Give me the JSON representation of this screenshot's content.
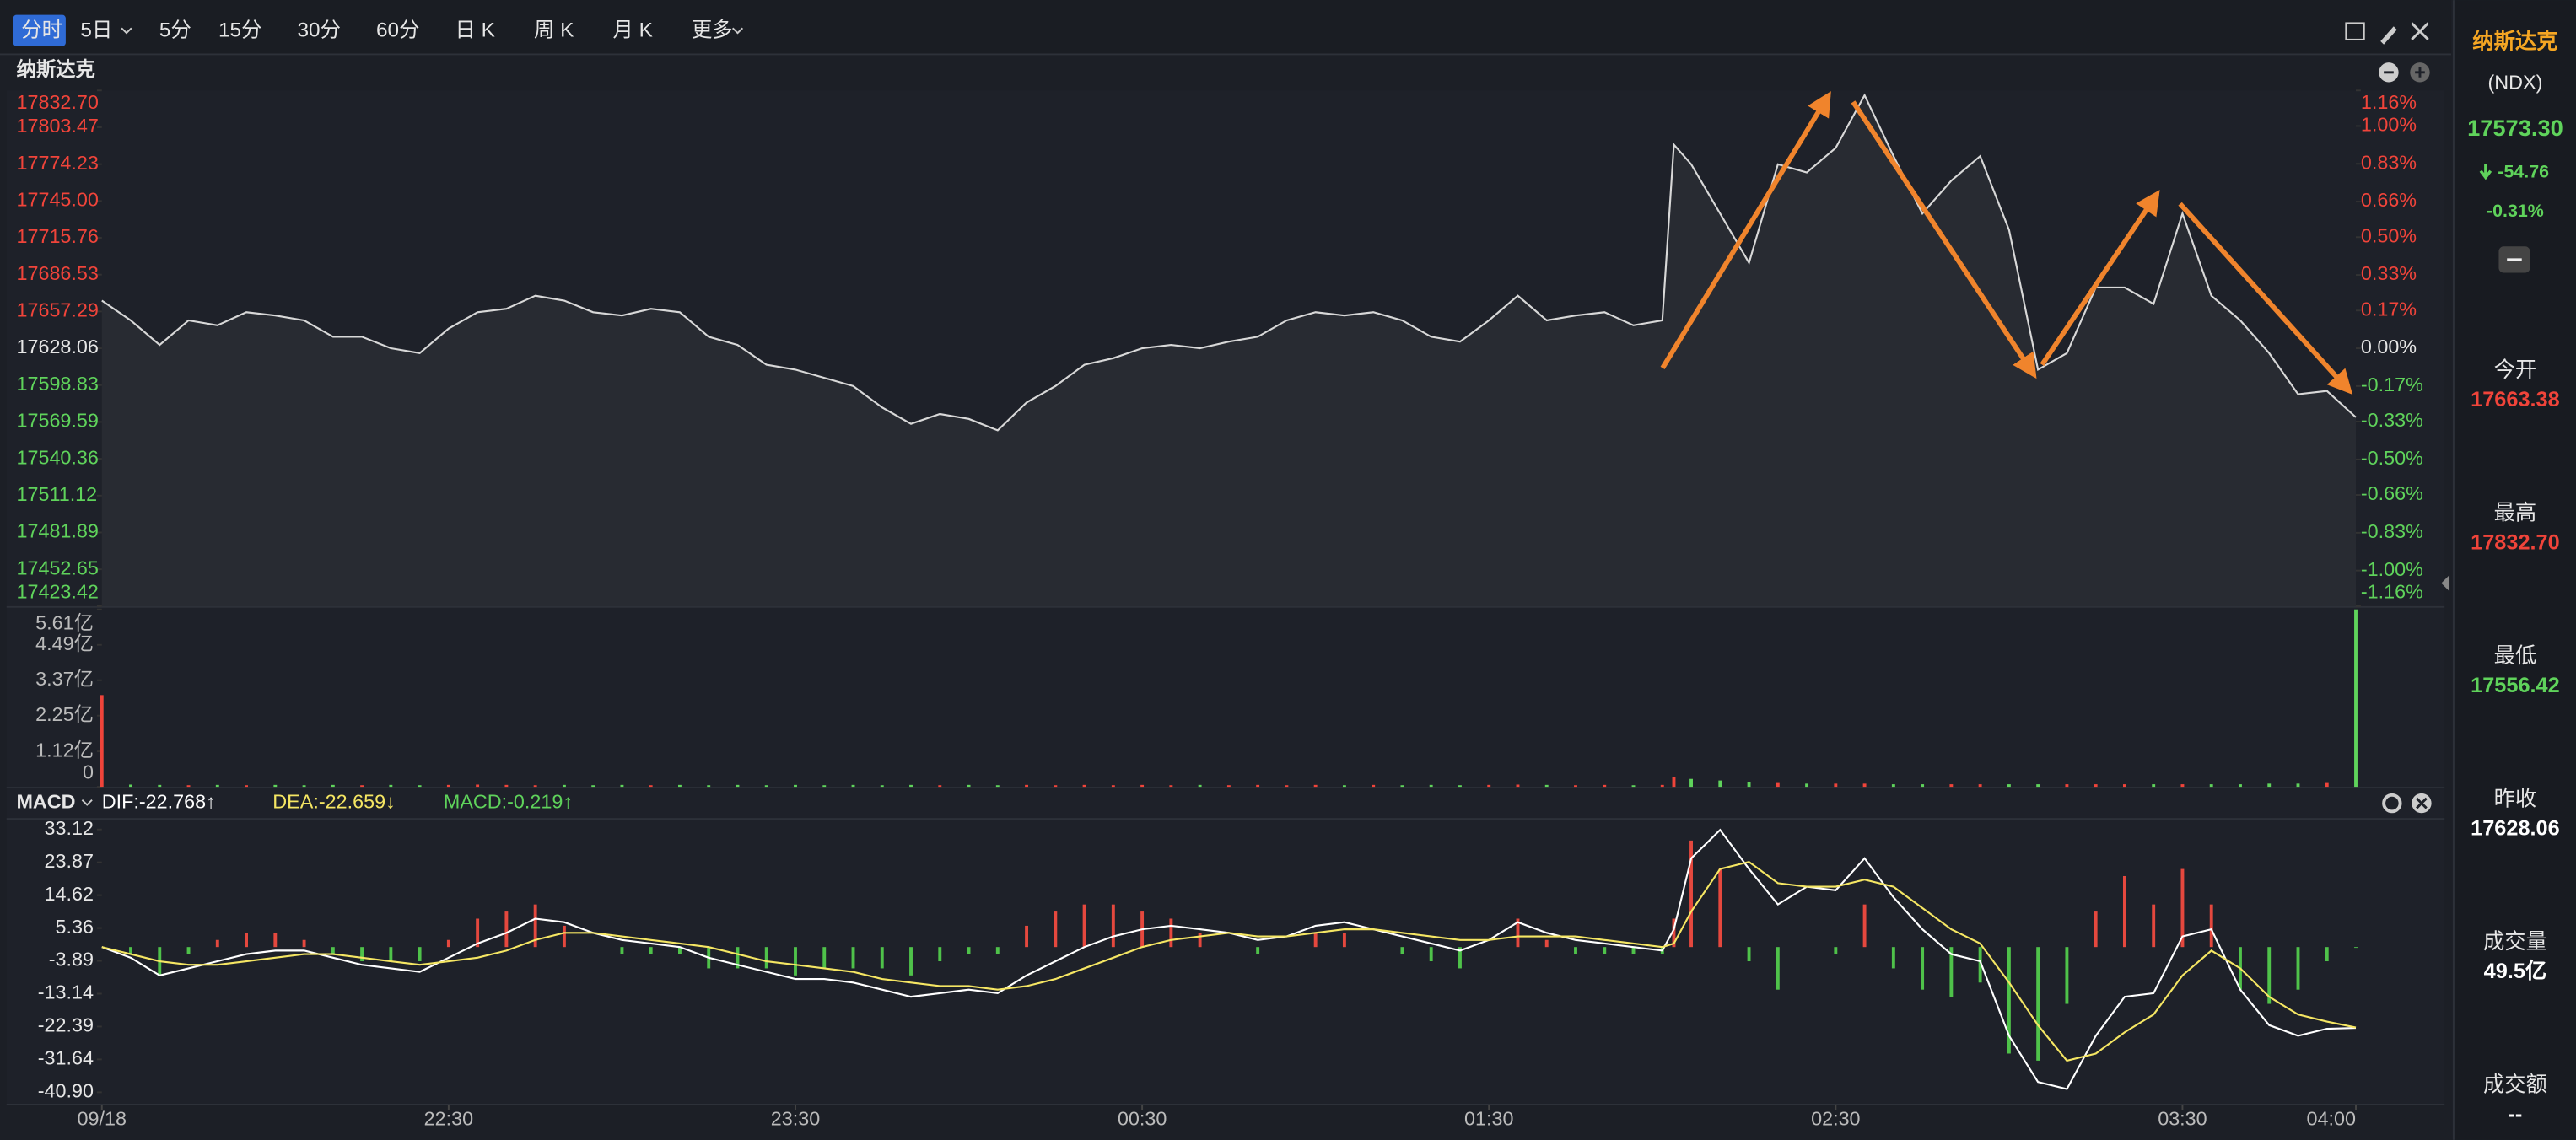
{
  "toolbar": {
    "tabs": [
      "分时",
      "5日",
      "5分",
      "15分",
      "30分",
      "60分",
      "日 K",
      "周 K",
      "月 K",
      "更多"
    ],
    "active": 0
  },
  "side_panel": {
    "name": "纳斯达克",
    "code": "(NDX)",
    "price": "17573.30",
    "change": "-54.76",
    "change_pct": "-0.31%",
    "stats": [
      {
        "label": "今开",
        "value": "17663.38",
        "color": "#f0443a"
      },
      {
        "label": "最高",
        "value": "17832.70",
        "color": "#f0443a"
      },
      {
        "label": "最低",
        "value": "17556.42",
        "color": "#5fd35b"
      },
      {
        "label": "昨收",
        "value": "17628.06",
        "color": "#ffffff"
      },
      {
        "label": "成交量",
        "value": "49.5亿",
        "color": "#ffffff"
      },
      {
        "label": "成交额",
        "value": "--",
        "color": "#ffffff"
      }
    ]
  },
  "chart_data": [
    {
      "type": "line",
      "title": "纳斯达克",
      "color": "#d8d8d8",
      "up_color": "#f0443a",
      "down_color": "#5fd35b",
      "x": [
        0,
        5,
        10,
        15,
        20,
        25,
        30,
        35,
        40,
        45,
        50,
        55,
        60,
        65,
        70,
        75,
        80,
        85,
        90,
        95,
        100,
        105,
        110,
        115,
        120,
        125,
        130,
        135,
        140,
        145,
        150,
        155,
        160,
        165,
        170,
        175,
        180,
        185,
        190,
        195,
        200,
        205,
        210,
        215,
        220,
        225,
        230,
        235,
        240,
        245,
        250,
        255,
        260,
        265,
        270,
        272,
        275,
        280,
        285,
        290,
        295,
        300,
        305,
        310,
        315,
        320,
        325,
        330,
        335,
        340,
        345,
        350,
        355,
        360,
        365,
        370,
        375,
        380,
        385,
        390
      ],
      "values": [
        17665.9,
        17650.2,
        17630.7,
        17650.2,
        17646.3,
        17656.7,
        17654.1,
        17650.2,
        17637.2,
        17637.2,
        17628.1,
        17624.2,
        17643.7,
        17656.7,
        17659.4,
        17669.8,
        17665.9,
        17656.7,
        17654.1,
        17659.4,
        17656.7,
        17637.2,
        17630.7,
        17615.0,
        17611.1,
        17604.6,
        17598.1,
        17581.1,
        17568.1,
        17575.9,
        17572.0,
        17562.9,
        17585.0,
        17598.1,
        17615.0,
        17620.2,
        17628.1,
        17630.7,
        17628.1,
        17633.3,
        17637.2,
        17650.2,
        17656.7,
        17654.1,
        17656.7,
        17650.2,
        17637.2,
        17633.3,
        17650.2,
        17669.8,
        17650.2,
        17654.1,
        17656.7,
        17646.3,
        17650.2,
        17789.7,
        17774.1,
        17735.0,
        17695.9,
        17774.1,
        17767.6,
        17787.1,
        17828.9,
        17780.6,
        17735.0,
        17761.1,
        17780.6,
        17721.9,
        17611.1,
        17624.2,
        17676.3,
        17676.3,
        17663.3,
        17735.0,
        17669.8,
        17650.2,
        17624.2,
        17591.6,
        17594.2,
        17573.3
      ],
      "xlim": [
        0,
        390
      ],
      "ylim": [
        17423.42,
        17832.7
      ],
      "yticks": [
        {
          "value": 17832.7,
          "label": "17832.70"
        },
        17803.47,
        17774.23,
        {
          "value": 17745.0,
          "label": "17745.00"
        },
        17715.76,
        17686.53,
        17657.29,
        17628.06,
        17598.83,
        17569.59,
        17540.36,
        17511.12,
        17481.89,
        17452.65,
        17423.42
      ],
      "y2lim": [
        -1.16,
        1.16
      ],
      "y2ticks": [
        {
          "value": 1.16,
          "label": "1.16%"
        },
        {
          "value": 1.0,
          "label": "1.00%"
        },
        {
          "value": 0.83,
          "label": "0.83%"
        },
        {
          "value": 0.66,
          "label": "0.66%"
        },
        {
          "value": 0.5,
          "label": "0.50%"
        },
        {
          "value": 0.33,
          "label": "0.33%"
        },
        {
          "value": 0.17,
          "label": "0.17%"
        },
        {
          "value": 0.0,
          "label": "0.00%"
        },
        {
          "value": -0.17,
          "label": "-0.17%"
        },
        {
          "value": -0.33,
          "label": "-0.33%"
        },
        {
          "value": -0.5,
          "label": "-0.50%"
        },
        {
          "value": -0.66,
          "label": "-0.66%"
        },
        {
          "value": -0.83,
          "label": "-0.83%"
        },
        {
          "value": -1.0,
          "label": "-1.00%"
        },
        {
          "value": -1.16,
          "label": "-1.16%"
        }
      ]
    },
    {
      "type": "bar",
      "up_color": "#f0443a",
      "down_color": "#5fd35b",
      "x": [
        0,
        5,
        10,
        15,
        20,
        25,
        30,
        35,
        40,
        45,
        50,
        55,
        60,
        65,
        70,
        75,
        80,
        85,
        90,
        95,
        100,
        105,
        110,
        115,
        120,
        125,
        130,
        135,
        140,
        145,
        150,
        155,
        160,
        165,
        170,
        175,
        180,
        185,
        190,
        195,
        200,
        205,
        210,
        215,
        220,
        225,
        230,
        235,
        240,
        245,
        250,
        255,
        260,
        265,
        270,
        272,
        275,
        280,
        285,
        290,
        295,
        300,
        305,
        310,
        315,
        320,
        325,
        330,
        335,
        340,
        345,
        350,
        355,
        360,
        365,
        370,
        375,
        380,
        385,
        390
      ],
      "values": [
        2.9,
        0.07,
        0.06,
        0.05,
        0.06,
        0.05,
        0.06,
        0.05,
        0.06,
        0.05,
        0.06,
        0.05,
        0.06,
        0.07,
        0.06,
        0.05,
        0.06,
        0.05,
        0.06,
        0.05,
        0.06,
        0.05,
        0.06,
        0.05,
        0.06,
        0.05,
        0.06,
        0.05,
        0.06,
        0.05,
        0.06,
        0.05,
        0.06,
        0.05,
        0.06,
        0.05,
        0.06,
        0.05,
        0.06,
        0.05,
        0.06,
        0.05,
        0.06,
        0.05,
        0.06,
        0.05,
        0.06,
        0.05,
        0.06,
        0.07,
        0.06,
        0.05,
        0.06,
        0.05,
        0.06,
        0.3,
        0.25,
        0.2,
        0.15,
        0.12,
        0.1,
        0.1,
        0.1,
        0.08,
        0.08,
        0.08,
        0.08,
        0.08,
        0.08,
        0.08,
        0.08,
        0.08,
        0.08,
        0.08,
        0.08,
        0.08,
        0.1,
        0.1,
        0.12,
        5.61
      ],
      "xlim": [
        0,
        390
      ],
      "ylim": [
        0,
        5.61
      ],
      "yticks": [
        {
          "value": 5.61,
          "label": "5.61亿"
        },
        {
          "value": 4.49,
          "label": "4.49亿"
        },
        {
          "value": 3.37,
          "label": "3.37亿"
        },
        {
          "value": 2.25,
          "label": "2.25亿"
        },
        {
          "value": 1.12,
          "label": "1.12亿"
        },
        0
      ]
    },
    {
      "type": "macd",
      "title": "MACD",
      "up_color": "#e5483e",
      "down_color": "#4fc24a",
      "x": [
        0,
        5,
        10,
        15,
        20,
        25,
        30,
        35,
        40,
        45,
        50,
        55,
        60,
        65,
        70,
        75,
        80,
        85,
        90,
        95,
        100,
        105,
        110,
        115,
        120,
        125,
        130,
        135,
        140,
        145,
        150,
        155,
        160,
        165,
        170,
        175,
        180,
        185,
        190,
        195,
        200,
        205,
        210,
        215,
        220,
        225,
        230,
        235,
        240,
        245,
        250,
        255,
        260,
        265,
        270,
        272,
        275,
        280,
        285,
        290,
        295,
        300,
        305,
        310,
        315,
        320,
        325,
        330,
        335,
        340,
        345,
        350,
        355,
        360,
        365,
        370,
        375,
        380,
        385,
        390
      ],
      "series": [
        {
          "name": "DIF:-22.768↑",
          "kind": "line",
          "color": "#ffffff",
          "values": [
            0,
            -3,
            -8,
            -6,
            -4,
            -2,
            -1,
            -1,
            -3,
            -5,
            -6,
            -7,
            -3,
            1,
            4,
            8,
            7,
            4,
            2,
            1,
            0,
            -3,
            -5,
            -7,
            -9,
            -9,
            -10,
            -12,
            -14,
            -13,
            -12,
            -13,
            -8,
            -4,
            0,
            3,
            5,
            6,
            5,
            4,
            2,
            3,
            6,
            7,
            5,
            3,
            1,
            -1,
            2,
            7,
            4,
            2,
            1,
            0,
            -1,
            5,
            25,
            33,
            22,
            12,
            17,
            16,
            25,
            14,
            5,
            -2,
            -4,
            -25,
            -38,
            -40,
            -25,
            -14,
            -13,
            3,
            5,
            -12,
            -22,
            -25,
            -23,
            -22.768
          ]
        },
        {
          "name": "DEA:-22.659↓",
          "kind": "line",
          "color": "#f5e663",
          "values": [
            0,
            -2,
            -4,
            -5,
            -5,
            -4,
            -3,
            -2,
            -2,
            -3,
            -4,
            -5,
            -4,
            -3,
            -1,
            2,
            4,
            4,
            3,
            2,
            1,
            0,
            -2,
            -4,
            -5,
            -6,
            -7,
            -9,
            -10,
            -11,
            -11,
            -12,
            -11,
            -9,
            -6,
            -3,
            0,
            2,
            3,
            4,
            3,
            3,
            4,
            5,
            5,
            4,
            3,
            2,
            2,
            3,
            3,
            3,
            2,
            1,
            0,
            1,
            10,
            22,
            24,
            18,
            17,
            17,
            19,
            17,
            11,
            5,
            1,
            -10,
            -22,
            -32,
            -30,
            -24,
            -19,
            -8,
            -1,
            -6,
            -14,
            -19,
            -21,
            -22.659
          ]
        },
        {
          "name": "MACD:-0.219↑",
          "kind": "bar",
          "color": "#5fd35b",
          "values": [
            0,
            -2,
            -8,
            -2,
            2,
            4,
            4,
            2,
            -2,
            -4,
            -4,
            -4,
            2,
            8,
            10,
            12,
            6,
            0,
            -2,
            -2,
            -2,
            -6,
            -6,
            -6,
            -8,
            -6,
            -6,
            -6,
            -8,
            -4,
            -2,
            -2,
            6,
            10,
            12,
            12,
            10,
            8,
            4,
            0,
            -2,
            0,
            4,
            4,
            0,
            -2,
            -4,
            -6,
            0,
            8,
            2,
            -2,
            -2,
            -2,
            -2,
            8,
            30,
            22,
            -4,
            -12,
            0,
            -2,
            12,
            -6,
            -12,
            -14,
            -10,
            -30,
            -32,
            -16,
            10,
            20,
            12,
            22,
            12,
            -12,
            -16,
            -12,
            -4,
            -0.219
          ]
        }
      ],
      "xlim": [
        0,
        390
      ],
      "ylim": [
        -40.9,
        33.12
      ],
      "yticks": [
        33.12,
        23.87,
        14.62,
        5.36,
        -3.89,
        -13.14,
        -22.39,
        -31.64,
        {
          "value": -40.9,
          "label": "-40.90"
        }
      ],
      "xticks": [
        {
          "value": 0,
          "label": "09/18"
        },
        {
          "value": 60,
          "label": "22:30"
        },
        {
          "value": 120,
          "label": "23:30"
        },
        {
          "value": 180,
          "label": "00:30"
        },
        {
          "value": 240,
          "label": "01:30"
        },
        {
          "value": 300,
          "label": "02:30"
        },
        {
          "value": 360,
          "label": "03:30"
        },
        {
          "value": 390,
          "label": "04:00"
        }
      ]
    }
  ]
}
